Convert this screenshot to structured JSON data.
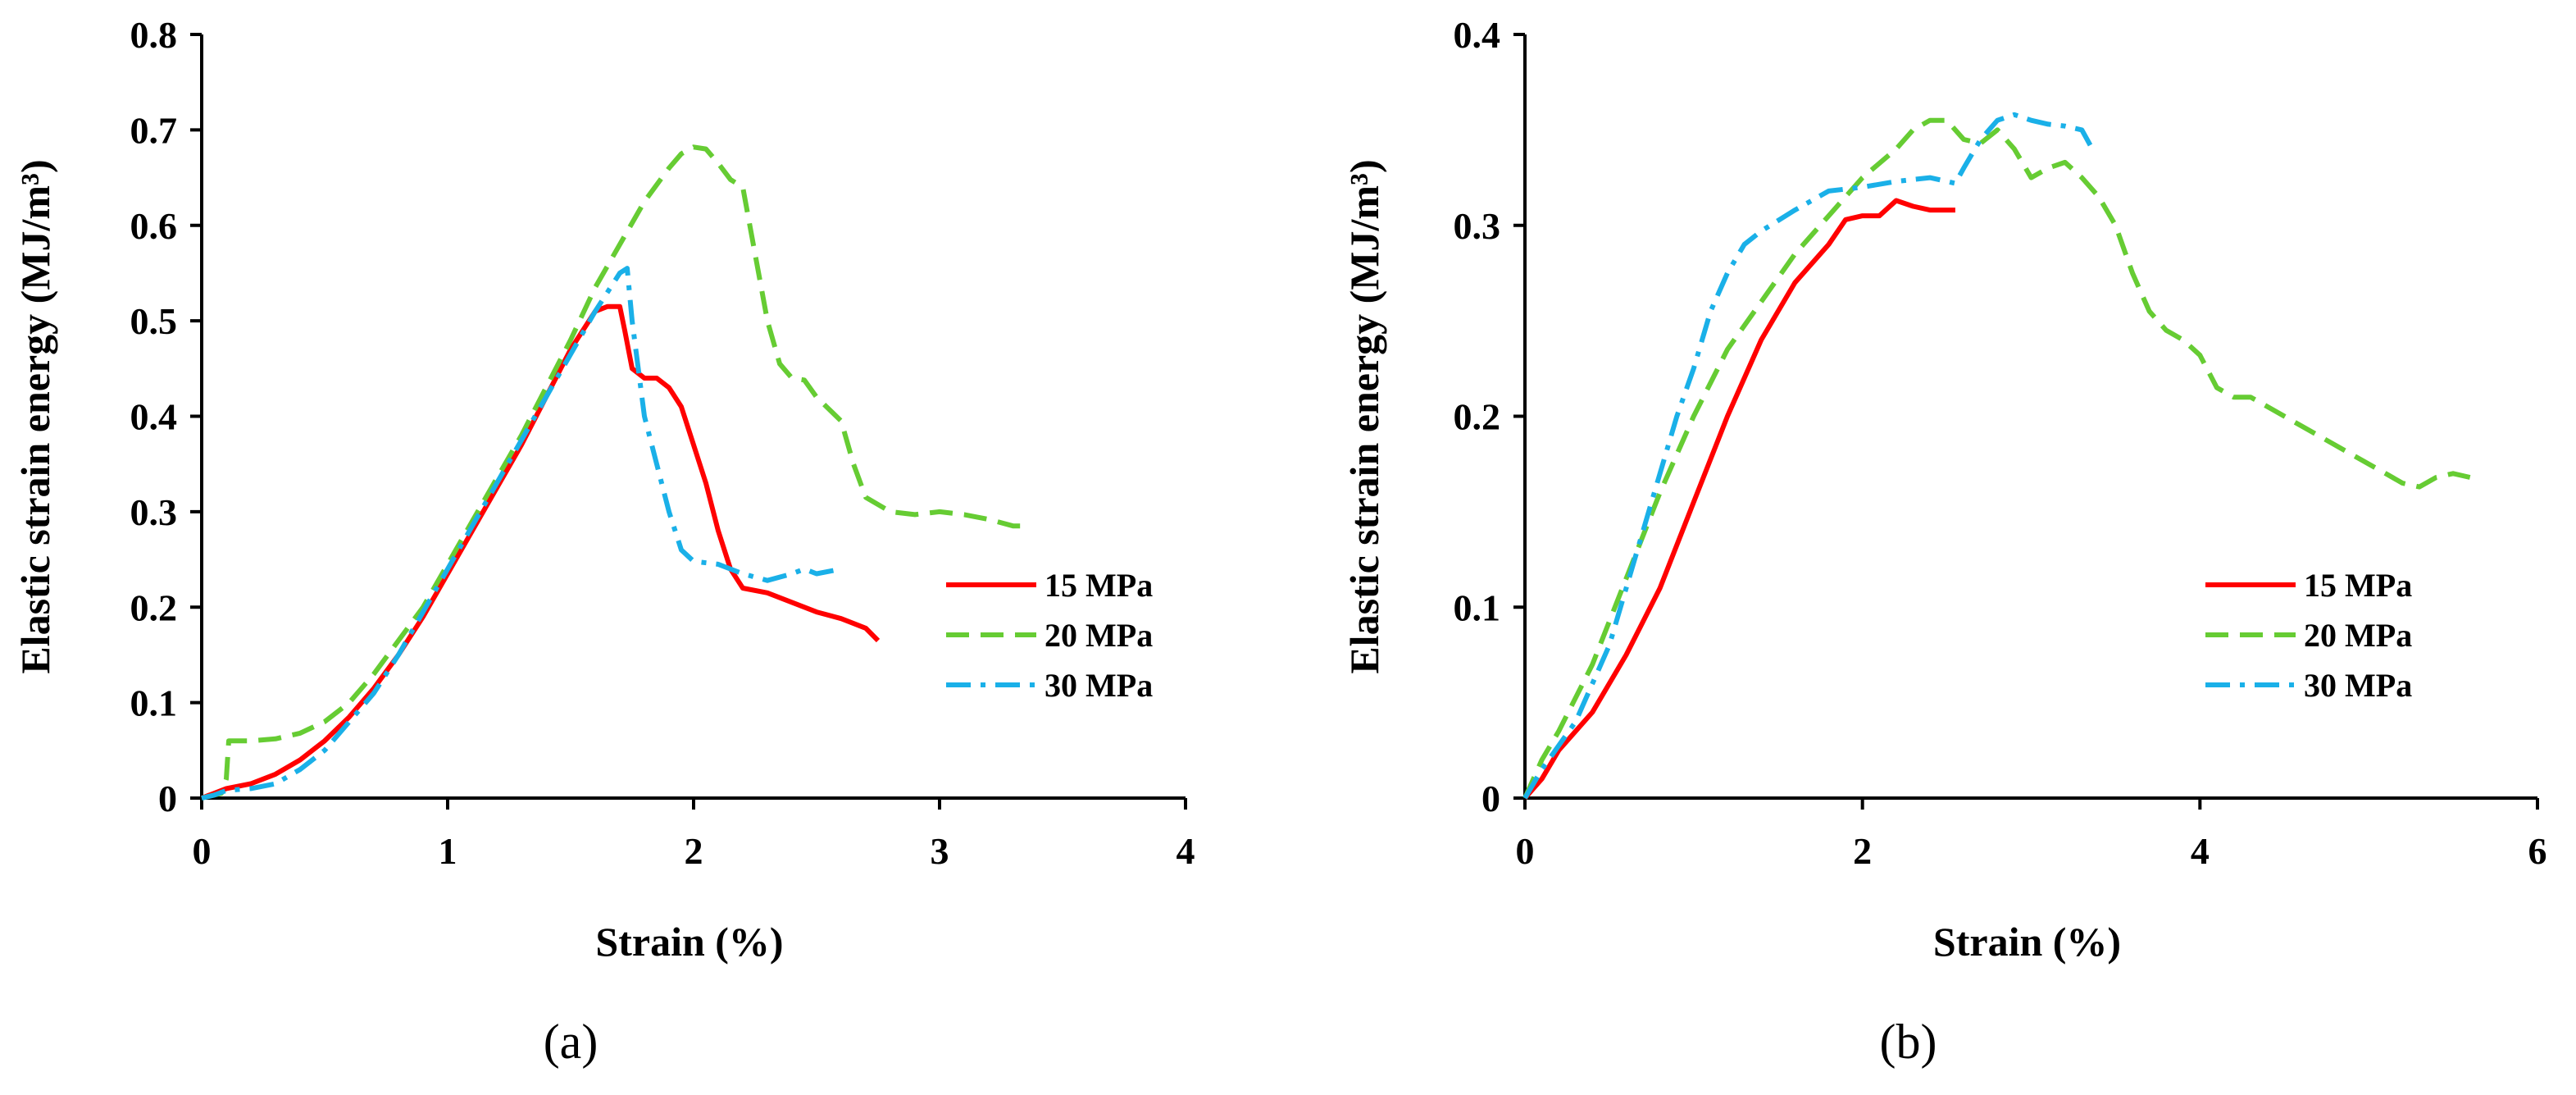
{
  "chart_data": [
    {
      "type": "line",
      "panel_label": "(a)",
      "xlabel": "Strain (%)",
      "ylabel": "Elastic strain energy (MJ/m³)",
      "xlim": [
        0,
        4
      ],
      "ylim": [
        0,
        0.8
      ],
      "xticks": [
        0,
        1,
        2,
        3,
        4
      ],
      "xtick_labels": [
        "0",
        "1",
        "2",
        "3",
        "4"
      ],
      "yticks": [
        0,
        0.1,
        0.2,
        0.3,
        0.4,
        0.5,
        0.6,
        0.7,
        0.8
      ],
      "ytick_labels": [
        "0",
        "0.1",
        "0.2",
        "0.3",
        "0.4",
        "0.5",
        "0.6",
        "0.7",
        "0.8"
      ],
      "legend_position": "right",
      "series": [
        {
          "name": "15 MPa",
          "color": "#ff0000",
          "dash": "solid",
          "points": [
            [
              0,
              0
            ],
            [
              0.1,
              0.01
            ],
            [
              0.2,
              0.015
            ],
            [
              0.3,
              0.025
            ],
            [
              0.4,
              0.04
            ],
            [
              0.5,
              0.06
            ],
            [
              0.6,
              0.085
            ],
            [
              0.7,
              0.115
            ],
            [
              0.8,
              0.15
            ],
            [
              0.9,
              0.19
            ],
            [
              1.0,
              0.235
            ],
            [
              1.1,
              0.28
            ],
            [
              1.2,
              0.325
            ],
            [
              1.3,
              0.37
            ],
            [
              1.4,
              0.42
            ],
            [
              1.5,
              0.47
            ],
            [
              1.6,
              0.51
            ],
            [
              1.65,
              0.515
            ],
            [
              1.7,
              0.515
            ],
            [
              1.72,
              0.49
            ],
            [
              1.75,
              0.45
            ],
            [
              1.8,
              0.44
            ],
            [
              1.85,
              0.44
            ],
            [
              1.9,
              0.43
            ],
            [
              1.95,
              0.41
            ],
            [
              2.0,
              0.37
            ],
            [
              2.05,
              0.33
            ],
            [
              2.1,
              0.28
            ],
            [
              2.15,
              0.24
            ],
            [
              2.2,
              0.22
            ],
            [
              2.3,
              0.215
            ],
            [
              2.4,
              0.205
            ],
            [
              2.5,
              0.195
            ],
            [
              2.6,
              0.188
            ],
            [
              2.7,
              0.178
            ],
            [
              2.75,
              0.165
            ]
          ]
        },
        {
          "name": "20 MPa",
          "color": "#66cc33",
          "dash": "dashed",
          "points": [
            [
              0,
              0
            ],
            [
              0.08,
              0.005
            ],
            [
              0.1,
              0.02
            ],
            [
              0.11,
              0.06
            ],
            [
              0.2,
              0.06
            ],
            [
              0.3,
              0.062
            ],
            [
              0.4,
              0.068
            ],
            [
              0.5,
              0.08
            ],
            [
              0.6,
              0.1
            ],
            [
              0.7,
              0.13
            ],
            [
              0.8,
              0.165
            ],
            [
              0.9,
              0.2
            ],
            [
              1.0,
              0.245
            ],
            [
              1.1,
              0.29
            ],
            [
              1.2,
              0.335
            ],
            [
              1.3,
              0.38
            ],
            [
              1.4,
              0.43
            ],
            [
              1.5,
              0.48
            ],
            [
              1.6,
              0.535
            ],
            [
              1.7,
              0.58
            ],
            [
              1.8,
              0.625
            ],
            [
              1.9,
              0.66
            ],
            [
              1.95,
              0.675
            ],
            [
              2.0,
              0.682
            ],
            [
              2.05,
              0.68
            ],
            [
              2.1,
              0.665
            ],
            [
              2.15,
              0.648
            ],
            [
              2.2,
              0.64
            ],
            [
              2.25,
              0.57
            ],
            [
              2.3,
              0.5
            ],
            [
              2.35,
              0.455
            ],
            [
              2.4,
              0.44
            ],
            [
              2.45,
              0.438
            ],
            [
              2.5,
              0.42
            ],
            [
              2.6,
              0.395
            ],
            [
              2.65,
              0.35
            ],
            [
              2.7,
              0.315
            ],
            [
              2.8,
              0.3
            ],
            [
              2.9,
              0.297
            ],
            [
              3.0,
              0.3
            ],
            [
              3.1,
              0.297
            ],
            [
              3.2,
              0.292
            ],
            [
              3.3,
              0.285
            ],
            [
              3.35,
              0.285
            ]
          ]
        },
        {
          "name": "30 MPa",
          "color": "#1ab0e8",
          "dash": "dashdot",
          "points": [
            [
              0,
              0
            ],
            [
              0.05,
              0.003
            ],
            [
              0.1,
              0.008
            ],
            [
              0.2,
              0.01
            ],
            [
              0.3,
              0.015
            ],
            [
              0.4,
              0.03
            ],
            [
              0.5,
              0.05
            ],
            [
              0.6,
              0.08
            ],
            [
              0.7,
              0.11
            ],
            [
              0.8,
              0.15
            ],
            [
              0.9,
              0.195
            ],
            [
              1.0,
              0.24
            ],
            [
              1.1,
              0.285
            ],
            [
              1.2,
              0.33
            ],
            [
              1.3,
              0.375
            ],
            [
              1.4,
              0.42
            ],
            [
              1.5,
              0.465
            ],
            [
              1.6,
              0.51
            ],
            [
              1.65,
              0.53
            ],
            [
              1.7,
              0.55
            ],
            [
              1.73,
              0.555
            ],
            [
              1.75,
              0.5
            ],
            [
              1.8,
              0.4
            ],
            [
              1.85,
              0.35
            ],
            [
              1.9,
              0.3
            ],
            [
              1.95,
              0.26
            ],
            [
              2.0,
              0.248
            ],
            [
              2.1,
              0.245
            ],
            [
              2.2,
              0.235
            ],
            [
              2.3,
              0.228
            ],
            [
              2.4,
              0.235
            ],
            [
              2.45,
              0.24
            ],
            [
              2.5,
              0.235
            ],
            [
              2.6,
              0.24
            ]
          ]
        }
      ]
    },
    {
      "type": "line",
      "panel_label": "(b)",
      "xlabel": "Strain (%)",
      "ylabel": "Elastic strain energy (MJ/m³)",
      "xlim": [
        0,
        6
      ],
      "ylim": [
        0,
        0.4
      ],
      "xticks": [
        0,
        2,
        4,
        6
      ],
      "xtick_labels": [
        "0",
        "2",
        "4",
        "6"
      ],
      "yticks": [
        0,
        0.1,
        0.2,
        0.3,
        0.4
      ],
      "ytick_labels": [
        "0",
        "0.1",
        "0.2",
        "0.3",
        "0.4"
      ],
      "legend_position": "right",
      "series": [
        {
          "name": "15 MPa",
          "color": "#ff0000",
          "dash": "solid",
          "points": [
            [
              0,
              0
            ],
            [
              0.1,
              0.01
            ],
            [
              0.2,
              0.025
            ],
            [
              0.4,
              0.045
            ],
            [
              0.6,
              0.075
            ],
            [
              0.8,
              0.11
            ],
            [
              1.0,
              0.155
            ],
            [
              1.2,
              0.2
            ],
            [
              1.4,
              0.24
            ],
            [
              1.6,
              0.27
            ],
            [
              1.8,
              0.29
            ],
            [
              1.9,
              0.303
            ],
            [
              2.0,
              0.305
            ],
            [
              2.1,
              0.305
            ],
            [
              2.2,
              0.313
            ],
            [
              2.3,
              0.31
            ],
            [
              2.4,
              0.308
            ],
            [
              2.55,
              0.308
            ]
          ]
        },
        {
          "name": "20 MPa",
          "color": "#66cc33",
          "dash": "dashed",
          "points": [
            [
              0,
              0
            ],
            [
              0.1,
              0.02
            ],
            [
              0.2,
              0.035
            ],
            [
              0.4,
              0.07
            ],
            [
              0.6,
              0.115
            ],
            [
              0.8,
              0.16
            ],
            [
              1.0,
              0.2
            ],
            [
              1.2,
              0.235
            ],
            [
              1.4,
              0.26
            ],
            [
              1.6,
              0.285
            ],
            [
              1.8,
              0.305
            ],
            [
              2.0,
              0.325
            ],
            [
              2.2,
              0.34
            ],
            [
              2.3,
              0.35
            ],
            [
              2.4,
              0.355
            ],
            [
              2.5,
              0.355
            ],
            [
              2.6,
              0.345
            ],
            [
              2.7,
              0.343
            ],
            [
              2.8,
              0.35
            ],
            [
              2.9,
              0.34
            ],
            [
              3.0,
              0.325
            ],
            [
              3.1,
              0.33
            ],
            [
              3.2,
              0.333
            ],
            [
              3.3,
              0.325
            ],
            [
              3.4,
              0.315
            ],
            [
              3.5,
              0.3
            ],
            [
              3.6,
              0.275
            ],
            [
              3.7,
              0.255
            ],
            [
              3.8,
              0.245
            ],
            [
              3.9,
              0.24
            ],
            [
              4.0,
              0.232
            ],
            [
              4.1,
              0.215
            ],
            [
              4.2,
              0.21
            ],
            [
              4.3,
              0.21
            ],
            [
              4.5,
              0.2
            ],
            [
              4.7,
              0.19
            ],
            [
              4.9,
              0.18
            ],
            [
              5.1,
              0.17
            ],
            [
              5.2,
              0.165
            ],
            [
              5.3,
              0.163
            ],
            [
              5.4,
              0.168
            ],
            [
              5.5,
              0.17
            ],
            [
              5.6,
              0.168
            ]
          ]
        },
        {
          "name": "30 MPa",
          "color": "#1ab0e8",
          "dash": "dashdot",
          "points": [
            [
              0,
              0
            ],
            [
              0.1,
              0.015
            ],
            [
              0.3,
              0.04
            ],
            [
              0.5,
              0.08
            ],
            [
              0.7,
              0.14
            ],
            [
              0.9,
              0.2
            ],
            [
              1.0,
              0.225
            ],
            [
              1.1,
              0.255
            ],
            [
              1.2,
              0.275
            ],
            [
              1.3,
              0.29
            ],
            [
              1.4,
              0.297
            ],
            [
              1.6,
              0.308
            ],
            [
              1.8,
              0.318
            ],
            [
              2.0,
              0.32
            ],
            [
              2.2,
              0.323
            ],
            [
              2.4,
              0.325
            ],
            [
              2.5,
              0.323
            ],
            [
              2.55,
              0.322
            ],
            [
              2.6,
              0.33
            ],
            [
              2.7,
              0.345
            ],
            [
              2.8,
              0.355
            ],
            [
              2.9,
              0.358
            ],
            [
              3.0,
              0.355
            ],
            [
              3.1,
              0.353
            ],
            [
              3.2,
              0.352
            ],
            [
              3.3,
              0.35
            ],
            [
              3.35,
              0.342
            ]
          ]
        }
      ]
    }
  ]
}
